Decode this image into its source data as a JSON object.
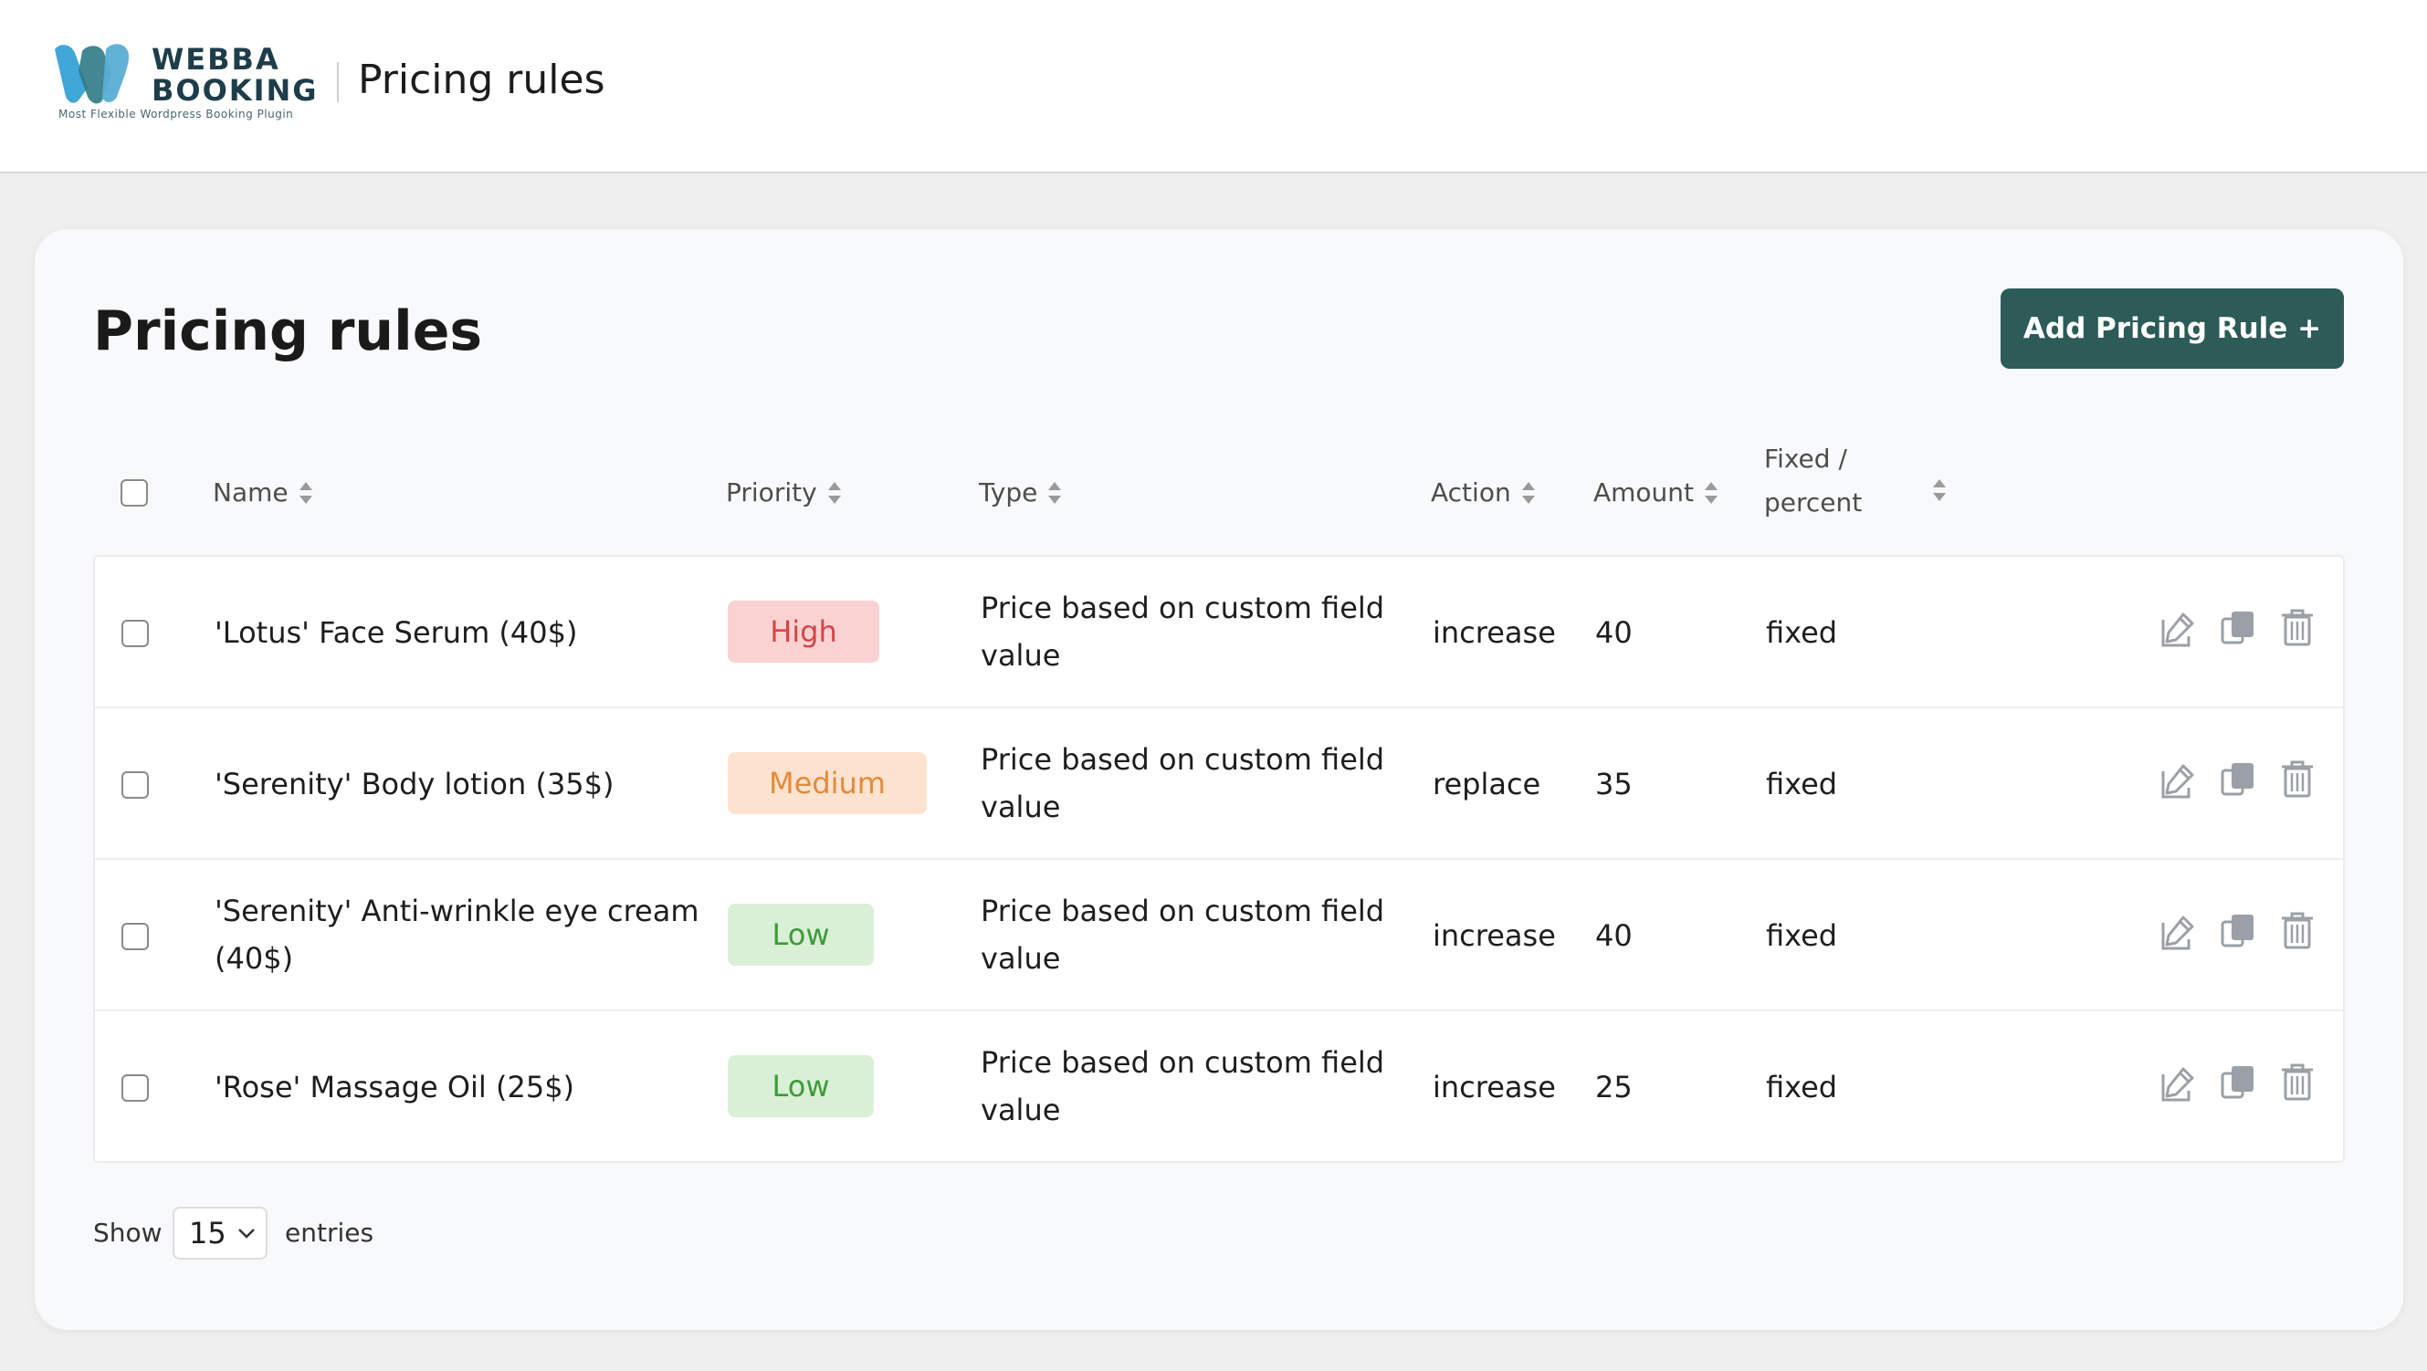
{
  "header": {
    "logo_line1": "WEBBA",
    "logo_line2": "BOOKING",
    "logo_tagline": "Most Flexible Wordpress Booking Plugin",
    "title": "Pricing rules"
  },
  "page": {
    "title": "Pricing rules",
    "add_button_label": "Add Pricing Rule +"
  },
  "table": {
    "columns": {
      "name": "Name",
      "priority": "Priority",
      "type": "Type",
      "action": "Action",
      "amount": "Amount",
      "fixed_percent_line1": "Fixed /",
      "fixed_percent_line2": "percent"
    },
    "rows": [
      {
        "name_line1": "'Lotus' Face Serum (40$)",
        "name_line2": "",
        "priority": "High",
        "type_line1": "Price based on custom field",
        "type_line2": "value",
        "action": "increase",
        "amount": "40",
        "fixed_percent": "fixed"
      },
      {
        "name_line1": "'Serenity' Body lotion (35$)",
        "name_line2": "",
        "priority": "Medium",
        "type_line1": "Price based on custom field",
        "type_line2": "value",
        "action": "replace",
        "amount": "35",
        "fixed_percent": "fixed"
      },
      {
        "name_line1": "'Serenity' Anti-wrinkle eye cream",
        "name_line2": "(40$)",
        "priority": "Low",
        "type_line1": "Price based on custom field",
        "type_line2": "value",
        "action": "increase",
        "amount": "40",
        "fixed_percent": "fixed"
      },
      {
        "name_line1": "'Rose' Massage Oil (25$)",
        "name_line2": "",
        "priority": "Low",
        "type_line1": "Price based on custom field",
        "type_line2": "value",
        "action": "increase",
        "amount": "25",
        "fixed_percent": "fixed"
      }
    ]
  },
  "footer": {
    "show_label": "Show",
    "entries_value": "15",
    "entries_label": "entries"
  },
  "colors": {
    "accent_button": "#2c5b58",
    "priority_high": "#d64545",
    "priority_medium": "#e58a3a",
    "priority_low": "#3f9a3a"
  }
}
